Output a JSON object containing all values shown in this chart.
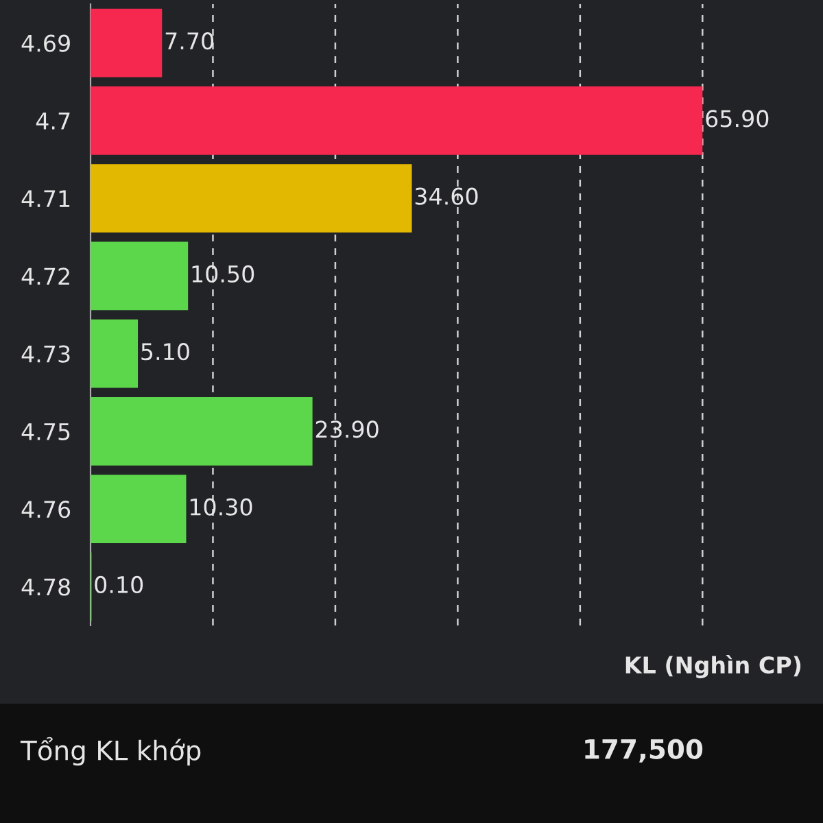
{
  "chart_data": {
    "type": "bar",
    "orientation": "horizontal",
    "xlabel": "KL (Nghìn CP)",
    "categories": [
      "4.69",
      "4.7",
      "4.71",
      "4.72",
      "4.73",
      "4.75",
      "4.76",
      "4.78"
    ],
    "values": [
      7.7,
      65.9,
      34.6,
      10.5,
      5.1,
      23.9,
      10.3,
      0.1
    ],
    "colors": [
      "#f7284f",
      "#f7284f",
      "#e2b900",
      "#5cd64a",
      "#5cd64a",
      "#5cd64a",
      "#5cd64a",
      "#5cd64a"
    ],
    "value_labels": [
      "7.70",
      "65.90",
      "34.60",
      "10.50",
      "5.10",
      "23.90",
      "10.30",
      "0.10"
    ],
    "xticks": [
      {
        "value": 13.18,
        "label": null
      },
      {
        "value": 26.36,
        "label": null
      },
      {
        "value": 39.54,
        "label": null
      },
      {
        "value": 52.72,
        "label": null
      },
      {
        "value": 65.9,
        "label": null
      }
    ],
    "grid": "x",
    "annotations": [
      "Tổng KL khớp",
      "177,500"
    ]
  }
}
